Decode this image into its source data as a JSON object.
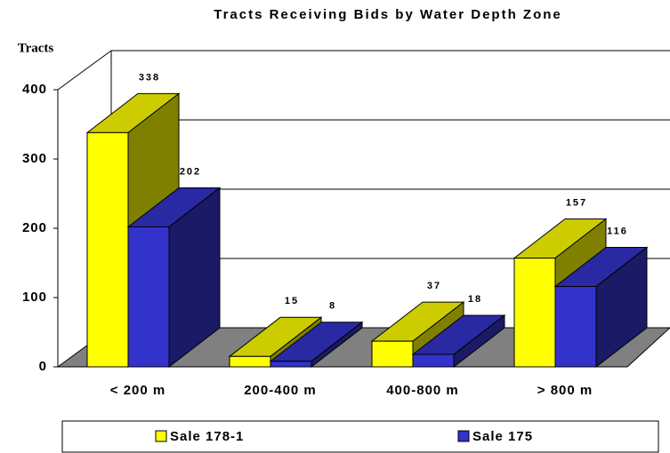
{
  "chart_data": {
    "type": "bar3d",
    "title": "Tracts Receiving Bids by Water Depth Zone",
    "y_label": "Tracts",
    "categories": [
      "< 200 m",
      "200-400 m",
      "400-800 m",
      "> 800 m"
    ],
    "series": [
      {
        "name": "Sale 178-1",
        "color": "#ffff00",
        "values": [
          338,
          15,
          37,
          157
        ]
      },
      {
        "name": "Sale 175",
        "color": "#3333cc",
        "values": [
          202,
          8,
          18,
          116
        ]
      }
    ],
    "ylim": [
      0,
      400
    ],
    "yticks": [
      0,
      100,
      200,
      300,
      400
    ],
    "grid": true,
    "legend": "bottom"
  }
}
